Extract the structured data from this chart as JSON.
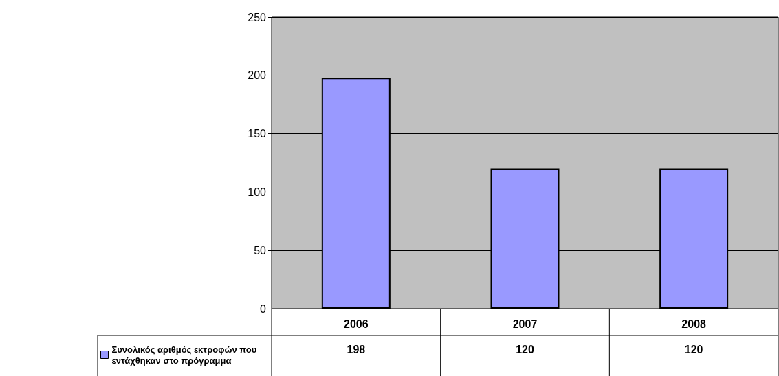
{
  "chart_data": {
    "type": "bar",
    "categories": [
      "2006",
      "2007",
      "2008"
    ],
    "series": [
      {
        "name": "Συνολικός αριθμός εκτροφών που εντάχθηκαν στο πρόγραμμα",
        "color": "#9999ff",
        "values": [
          198,
          120,
          120
        ]
      }
    ],
    "ylim": [
      0,
      250
    ],
    "yticks": [
      0,
      50,
      100,
      150,
      200,
      250
    ],
    "grid": "y",
    "legend": "bottom left",
    "data_labels": true
  }
}
